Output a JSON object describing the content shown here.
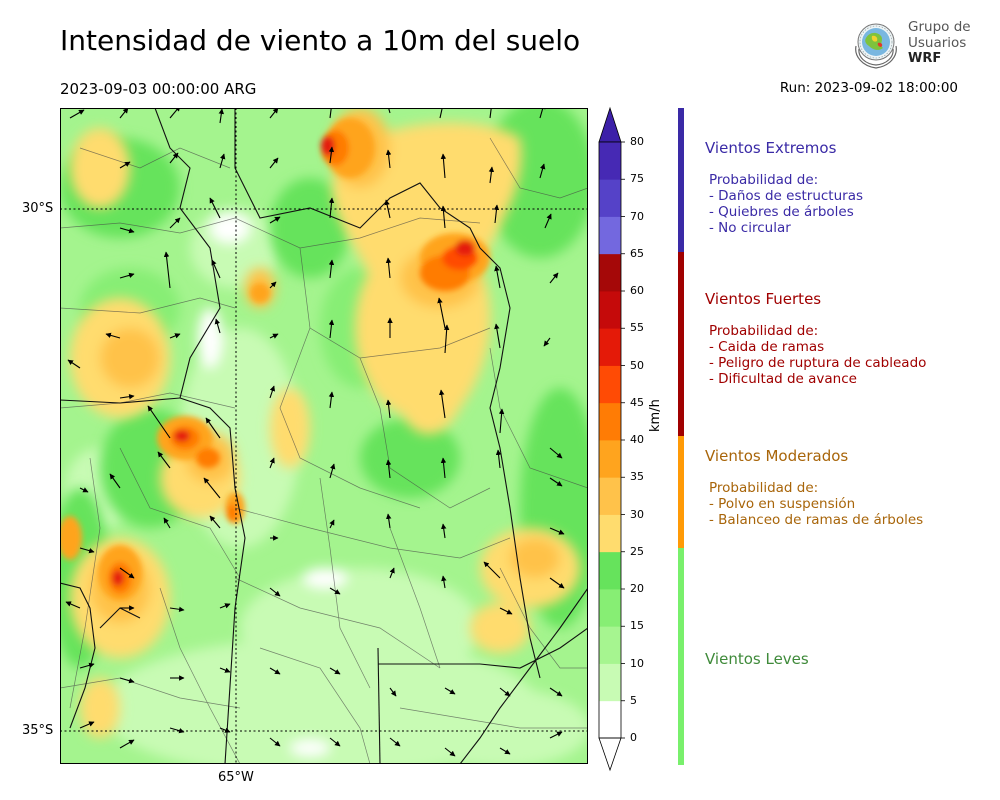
{
  "header": {
    "title": "Intensidad de viento a 10m del suelo",
    "valid_time": "2023-09-03 00:00:00 ARG",
    "run_time": "Run: 2023-09-02 18:00:00"
  },
  "logo": {
    "line1": "Grupo de",
    "line2": "Usuarios",
    "line3": "WRF"
  },
  "map": {
    "lat_labels": [
      "30°S",
      "35°S"
    ],
    "lon_labels": [
      "65°W"
    ]
  },
  "colorbar": {
    "unit": "km/h",
    "levels": [
      "0",
      "5",
      "10",
      "15",
      "20",
      "25",
      "30",
      "35",
      "40",
      "45",
      "50",
      "55",
      "60",
      "65",
      "70",
      "75",
      "80"
    ],
    "colors": [
      "#ffffff",
      "#c8fbb4",
      "#a6f590",
      "#87ee74",
      "#66e35c",
      "#ffdc6e",
      "#ffc24a",
      "#ffa41e",
      "#ff7c05",
      "#ff4b05",
      "#e41a08",
      "#c50a0a",
      "#a50808",
      "#7368df",
      "#5542c8",
      "#4629b4"
    ],
    "under_color": "#ffffff",
    "over_color": "#3c20a8"
  },
  "categories": [
    {
      "title": "Vientos Extremos",
      "color": "#3a2aa6",
      "bar_color": "#3a2aa6",
      "probability_label": "Probabilidad de:",
      "items": [
        "- Daños de estructuras",
        "- Quiebres de árboles",
        "- No circular"
      ]
    },
    {
      "title": "Vientos Fuertes",
      "color": "#a00000",
      "bar_color": "#a00000",
      "probability_label": "Probabilidad de:",
      "items": [
        "- Caida de ramas",
        "- Peligro de ruptura de cableado",
        "- Dificultad de avance"
      ]
    },
    {
      "title": "Vientos Moderados",
      "color": "#a8650a",
      "bar_color": "#ff9a06",
      "probability_label": "Probabilidad de:",
      "items": [
        "- Polvo en suspensión",
        "- Balanceo de ramas de árboles"
      ]
    },
    {
      "title": "Vientos Leves",
      "color": "#3f8a3a",
      "bar_color": "#79f06c",
      "probability_label": "",
      "items": []
    }
  ]
}
